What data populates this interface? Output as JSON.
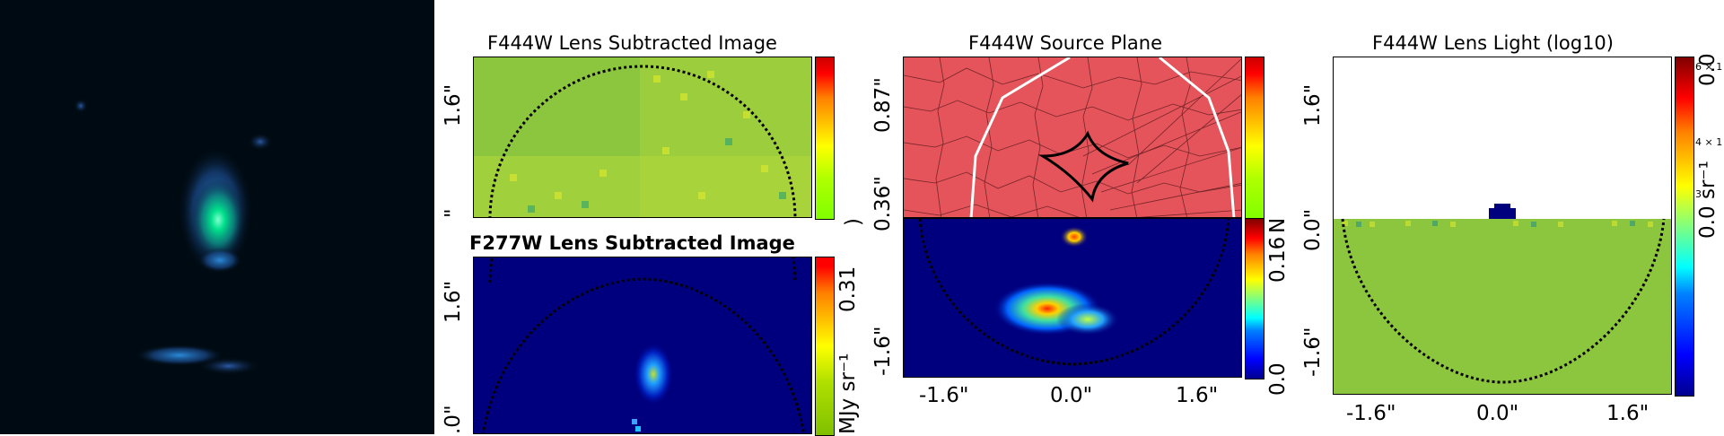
{
  "colors": {
    "lens_green": "#8cc63f",
    "source_red": "#e4545a",
    "deep_blue": "#00007f",
    "rgb_bg": "#000a12"
  },
  "panels": {
    "f444w_lens_subtracted": {
      "title": "F444W Lens Subtracted Image",
      "ytick_1": "1.6\"",
      "ytick_2": "\"",
      "cbar_label_fragment": ")"
    },
    "f277w_lens_subtracted": {
      "title": "F277W Lens Subtracted Image",
      "ytick_1": "1.6\"",
      "ytick_2": ".0\"",
      "cbar_tick": "0.31",
      "cbar_label": "MJy sr⁻¹"
    },
    "f444w_source_plane": {
      "title": "F444W Source Plane",
      "ytick_1": "0.87\"",
      "ytick_2": "0.36\"",
      "ytick_3": "-1.6\"",
      "xticks": [
        "-1.6\"",
        "0.0\"",
        "1.6\""
      ],
      "cbar_label_fragment": "N",
      "cbar_ticks": [
        "0.16",
        "0.0"
      ]
    },
    "f444w_lens_light": {
      "title": "F444W Lens Light (log10)",
      "yticks": [
        "1.6\"",
        "0.0\"",
        "-1.6\""
      ],
      "xticks": [
        "-1.6\"",
        "0.0\"",
        "1.6\""
      ],
      "cbar_fragment_top": "0.0",
      "cbar_fragment_small_1": "6 × 1",
      "cbar_fragment_small_2": "4 × 1",
      "cbar_fragment_small_3": "3",
      "cbar_fragment_label": "sr⁻¹",
      "cbar_fragment_bottom": "0.0"
    }
  }
}
